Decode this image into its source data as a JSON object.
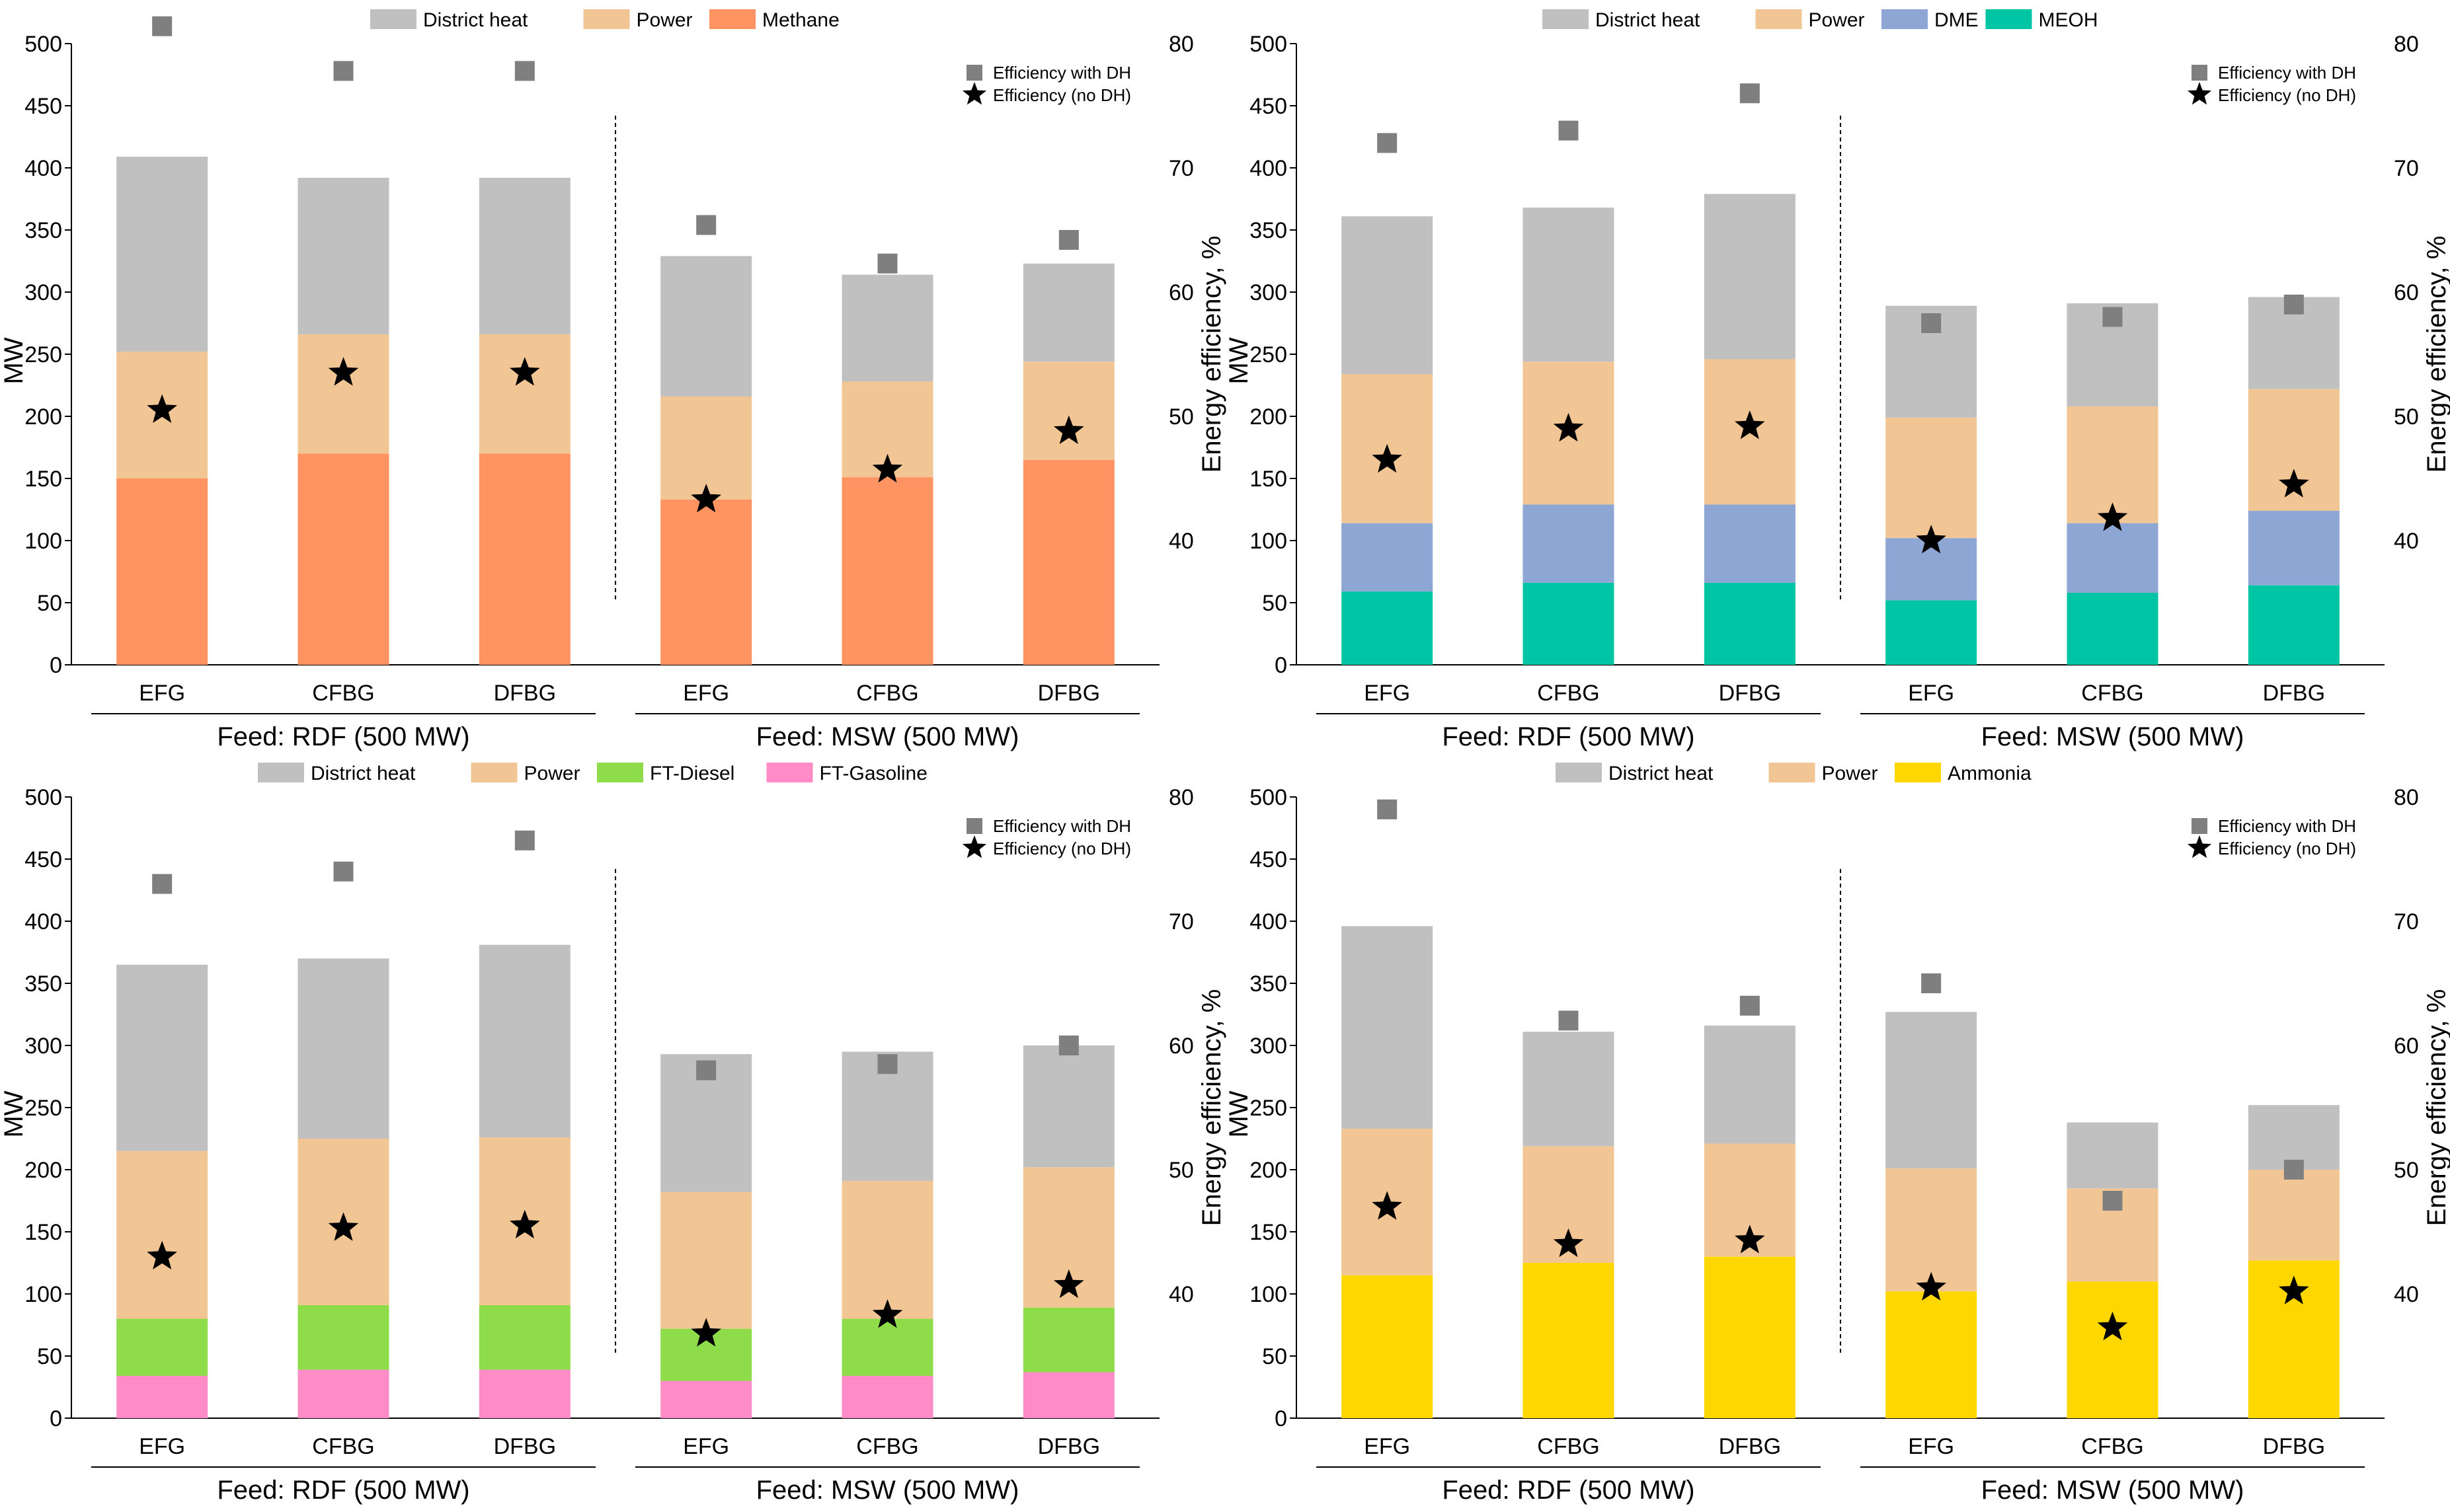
{
  "figure": {
    "colors": {
      "district_heat": "#c0c0c0",
      "power": "#f2c595",
      "methane": "#ff9361",
      "dme": "#8ea6d3",
      "meoh": "#00c5a5",
      "ft_diesel": "#8fdc4b",
      "ft_gasoline": "#ff8cc6",
      "ammonia": "#ffd700",
      "marker_dh": "#7f7f7f",
      "marker_nodh": "#000000"
    },
    "marker_legend": {
      "square": "Efficiency with DH",
      "star": "Efficiency (no DH)"
    }
  },
  "chart_data": [
    {
      "type": "bar",
      "stacked": true,
      "title": "",
      "ylabel": "MW",
      "y2label": "Energy efficiency, %",
      "ylim": [
        0,
        500
      ],
      "y2lim": [
        30,
        80
      ],
      "yticks": [
        "0",
        "50",
        "100",
        "150",
        "200",
        "250",
        "300",
        "350",
        "400",
        "450",
        "500"
      ],
      "y2ticks": [
        "40",
        "50",
        "60",
        "70",
        "80"
      ],
      "categories": [
        "EFG",
        "CFBG",
        "DFBG",
        "EFG",
        "CFBG",
        "DFBG"
      ],
      "groups": [
        {
          "label": "Feed: RDF (500 MW)",
          "count": 3
        },
        {
          "label": "Feed: MSW (500 MW)",
          "count": 3
        }
      ],
      "series": [
        {
          "name": "Methane",
          "color_key": "methane",
          "values": [
            150,
            170,
            170,
            133,
            151,
            165
          ]
        },
        {
          "name": "Power",
          "color_key": "power",
          "values": [
            102,
            96,
            96,
            83,
            77,
            79
          ]
        },
        {
          "name": "District heat",
          "color_key": "district_heat",
          "values": [
            157,
            126,
            126,
            113,
            86,
            79
          ]
        }
      ],
      "legend": [
        "District heat",
        "Power",
        "Methane"
      ],
      "efficiency_with_dh": [
        81.4,
        77.8,
        77.8,
        65.4,
        62.3,
        64.2
      ],
      "efficiency_no_dh": [
        50.5,
        53.5,
        53.5,
        43.3,
        45.7,
        48.8
      ]
    },
    {
      "type": "bar",
      "stacked": true,
      "title": "",
      "ylabel": "MW",
      "y2label": "Energy efficiency, %",
      "ylim": [
        0,
        500
      ],
      "y2lim": [
        30,
        80
      ],
      "yticks": [
        "0",
        "50",
        "100",
        "150",
        "200",
        "250",
        "300",
        "350",
        "400",
        "450",
        "500"
      ],
      "y2ticks": [
        "40",
        "50",
        "60",
        "70",
        "80"
      ],
      "categories": [
        "EFG",
        "CFBG",
        "DFBG",
        "EFG",
        "CFBG",
        "DFBG"
      ],
      "groups": [
        {
          "label": "Feed: RDF (500 MW)",
          "count": 3
        },
        {
          "label": "Feed: MSW (500 MW)",
          "count": 3
        }
      ],
      "series": [
        {
          "name": "MEOH",
          "color_key": "meoh",
          "values": [
            59,
            66,
            66,
            52,
            58,
            64
          ]
        },
        {
          "name": "DME",
          "color_key": "dme",
          "values": [
            55,
            63,
            63,
            50,
            56,
            60
          ]
        },
        {
          "name": "Power",
          "color_key": "power",
          "values": [
            120,
            115,
            117,
            97,
            94,
            98
          ]
        },
        {
          "name": "District heat",
          "color_key": "district_heat",
          "values": [
            127,
            124,
            133,
            90,
            83,
            74
          ]
        }
      ],
      "legend": [
        "District heat",
        "Power",
        "DME",
        "MEOH"
      ],
      "efficiency_with_dh": [
        72.0,
        73.0,
        76.0,
        57.5,
        58.0,
        59.0
      ],
      "efficiency_no_dh": [
        46.5,
        49.0,
        49.2,
        40.0,
        41.8,
        44.5
      ]
    },
    {
      "type": "bar",
      "stacked": true,
      "title": "",
      "ylabel": "MW",
      "y2label": "Energy efficiency, %",
      "ylim": [
        0,
        500
      ],
      "y2lim": [
        30,
        80
      ],
      "yticks": [
        "0",
        "50",
        "100",
        "150",
        "200",
        "250",
        "300",
        "350",
        "400",
        "450",
        "500"
      ],
      "y2ticks": [
        "40",
        "50",
        "60",
        "70",
        "80"
      ],
      "categories": [
        "EFG",
        "CFBG",
        "DFBG",
        "EFG",
        "CFBG",
        "DFBG"
      ],
      "groups": [
        {
          "label": "Feed: RDF (500 MW)",
          "count": 3
        },
        {
          "label": "Feed: MSW (500 MW)",
          "count": 3
        }
      ],
      "series": [
        {
          "name": "FT-Gasoline",
          "color_key": "ft_gasoline",
          "values": [
            34,
            39,
            39,
            30,
            34,
            37
          ]
        },
        {
          "name": "FT-Diesel",
          "color_key": "ft_diesel",
          "values": [
            46,
            52,
            52,
            42,
            46,
            52
          ]
        },
        {
          "name": "Power",
          "color_key": "power",
          "values": [
            135,
            134,
            135,
            110,
            111,
            113
          ]
        },
        {
          "name": "District heat",
          "color_key": "district_heat",
          "values": [
            150,
            145,
            155,
            111,
            104,
            98
          ]
        }
      ],
      "legend": [
        "District heat",
        "Power",
        "FT-Diesel",
        "FT-Gasoline"
      ],
      "efficiency_with_dh": [
        73.0,
        74.0,
        76.5,
        58.0,
        58.5,
        60.0
      ],
      "efficiency_no_dh": [
        43.0,
        45.3,
        45.5,
        36.8,
        38.3,
        40.7
      ]
    },
    {
      "type": "bar",
      "stacked": true,
      "title": "",
      "ylabel": "MW",
      "y2label": "Energy efficiency, %",
      "ylim": [
        0,
        500
      ],
      "y2lim": [
        30,
        80
      ],
      "yticks": [
        "0",
        "50",
        "100",
        "150",
        "200",
        "250",
        "300",
        "350",
        "400",
        "450",
        "500"
      ],
      "y2ticks": [
        "40",
        "50",
        "60",
        "70",
        "80"
      ],
      "categories": [
        "EFG",
        "CFBG",
        "DFBG",
        "EFG",
        "CFBG",
        "DFBG"
      ],
      "groups": [
        {
          "label": "Feed: RDF (500 MW)",
          "count": 3
        },
        {
          "label": "Feed: MSW (500 MW)",
          "count": 3
        }
      ],
      "series": [
        {
          "name": "Ammonia",
          "color_key": "ammonia",
          "values": [
            115,
            125,
            130,
            102,
            110,
            127
          ]
        },
        {
          "name": "Power",
          "color_key": "power",
          "values": [
            118,
            94,
            91,
            99,
            75,
            73
          ]
        },
        {
          "name": "District heat",
          "color_key": "district_heat",
          "values": [
            163,
            92,
            95,
            126,
            53,
            52
          ]
        }
      ],
      "legend": [
        "District heat",
        "Power",
        "Ammonia"
      ],
      "efficiency_with_dh": [
        79.0,
        62.0,
        63.2,
        65.0,
        47.5,
        50.0
      ],
      "efficiency_no_dh": [
        47.0,
        44.0,
        44.3,
        40.5,
        37.3,
        40.2
      ]
    }
  ]
}
